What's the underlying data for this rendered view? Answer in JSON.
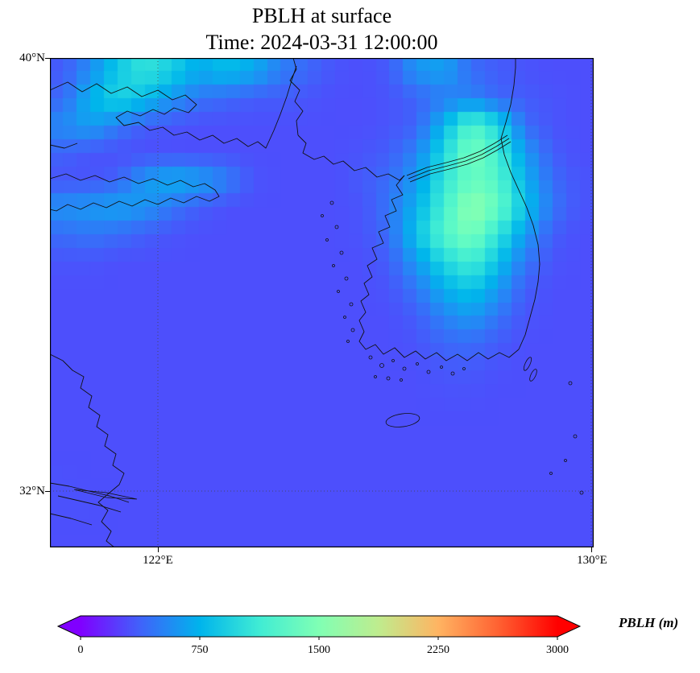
{
  "title": {
    "line1": "PBLH at surface",
    "line2": "Time: 2024-03-31 12:00:00"
  },
  "axes": {
    "y_ticks": [
      {
        "label": "40°N"
      },
      {
        "label": "32°N"
      }
    ],
    "x_ticks": [
      {
        "label": "122°E"
      },
      {
        "label": "130°E"
      }
    ]
  },
  "colorbar": {
    "label": "PBLH (m)",
    "ticks": [
      "0",
      "750",
      "1500",
      "2250",
      "3000"
    ],
    "under_color": "#8000FF",
    "over_color": "#FF0000",
    "stops": [
      {
        "t": 0.0,
        "color": "#8000FF"
      },
      {
        "t": 0.125,
        "color": "#4062FA"
      },
      {
        "t": 0.25,
        "color": "#00B4EC"
      },
      {
        "t": 0.375,
        "color": "#40ECD4"
      },
      {
        "t": 0.5,
        "color": "#80FFB4"
      },
      {
        "t": 0.625,
        "color": "#BFEC8E"
      },
      {
        "t": 0.75,
        "color": "#FFB462"
      },
      {
        "t": 0.875,
        "color": "#FF6232"
      },
      {
        "t": 1.0,
        "color": "#FF0000"
      }
    ]
  },
  "chart_data": {
    "type": "heatmap",
    "title": "PBLH at surface",
    "subtitle": "Time: 2024-03-31 12:00:00",
    "variable": "PBLH",
    "units": "m",
    "colormap": "rainbow",
    "vmin": 0,
    "vmax": 3000,
    "colorbar_ticks": [
      0,
      750,
      1500,
      2250,
      3000
    ],
    "x_axis": {
      "ticks": [
        "122°E",
        "130°E"
      ],
      "gridlines": "dotted"
    },
    "y_axis": {
      "ticks": [
        "40°N",
        "32°N"
      ],
      "gridlines": "dotted"
    },
    "region": "Korean peninsula / Yellow Sea",
    "grid_shape": [
      18,
      20
    ],
    "values_m": [
      [
        350,
        550,
        850,
        1050,
        900,
        700,
        800,
        700,
        500,
        400,
        320,
        300,
        350,
        600,
        650,
        420,
        350,
        320,
        300,
        300
      ],
      [
        400,
        750,
        950,
        800,
        600,
        450,
        400,
        350,
        350,
        320,
        300,
        300,
        320,
        380,
        480,
        520,
        400,
        350,
        320,
        300
      ],
      [
        550,
        650,
        480,
        350,
        320,
        300,
        300,
        300,
        300,
        300,
        300,
        300,
        320,
        380,
        750,
        1250,
        950,
        420,
        320,
        300
      ],
      [
        380,
        320,
        300,
        300,
        300,
        300,
        300,
        300,
        300,
        300,
        300,
        320,
        360,
        520,
        950,
        1450,
        1150,
        620,
        360,
        300
      ],
      [
        320,
        320,
        380,
        620,
        720,
        660,
        520,
        320,
        300,
        300,
        300,
        350,
        420,
        620,
        1050,
        1350,
        1250,
        720,
        420,
        320
      ],
      [
        580,
        620,
        660,
        600,
        460,
        360,
        300,
        300,
        300,
        300,
        300,
        320,
        460,
        720,
        1150,
        1600,
        1350,
        820,
        460,
        320
      ],
      [
        420,
        460,
        420,
        360,
        320,
        300,
        300,
        300,
        300,
        300,
        300,
        320,
        420,
        820,
        1250,
        1450,
        1050,
        620,
        360,
        300
      ],
      [
        320,
        320,
        300,
        300,
        300,
        300,
        300,
        300,
        300,
        300,
        300,
        300,
        360,
        620,
        950,
        1150,
        820,
        460,
        320,
        300
      ],
      [
        300,
        300,
        300,
        300,
        300,
        300,
        300,
        300,
        300,
        300,
        300,
        300,
        320,
        460,
        720,
        850,
        620,
        360,
        300,
        300
      ],
      [
        300,
        300,
        300,
        300,
        300,
        300,
        300,
        300,
        300,
        300,
        300,
        300,
        300,
        360,
        520,
        620,
        460,
        320,
        300,
        300
      ],
      [
        300,
        300,
        300,
        300,
        300,
        300,
        300,
        300,
        300,
        300,
        300,
        300,
        300,
        320,
        400,
        420,
        350,
        300,
        300,
        300
      ],
      [
        300,
        300,
        300,
        300,
        300,
        300,
        300,
        300,
        300,
        300,
        300,
        300,
        300,
        300,
        330,
        340,
        310,
        300,
        300,
        300
      ],
      [
        300,
        300,
        300,
        300,
        300,
        300,
        300,
        300,
        300,
        300,
        300,
        300,
        300,
        300,
        310,
        310,
        300,
        300,
        300,
        300
      ],
      [
        300,
        300,
        300,
        300,
        300,
        300,
        300,
        300,
        300,
        300,
        300,
        300,
        300,
        300,
        300,
        300,
        300,
        300,
        300,
        300
      ],
      [
        300,
        300,
        300,
        300,
        300,
        300,
        300,
        300,
        300,
        300,
        300,
        300,
        300,
        300,
        300,
        300,
        300,
        300,
        300,
        300
      ],
      [
        310,
        300,
        300,
        300,
        300,
        300,
        300,
        300,
        300,
        300,
        300,
        300,
        300,
        300,
        300,
        300,
        300,
        300,
        300,
        300
      ],
      [
        310,
        310,
        300,
        300,
        300,
        300,
        300,
        300,
        300,
        300,
        300,
        300,
        300,
        300,
        300,
        300,
        300,
        300,
        300,
        300
      ],
      [
        300,
        300,
        300,
        300,
        300,
        300,
        300,
        300,
        300,
        300,
        300,
        300,
        300,
        300,
        300,
        300,
        300,
        300,
        300,
        300
      ]
    ]
  }
}
